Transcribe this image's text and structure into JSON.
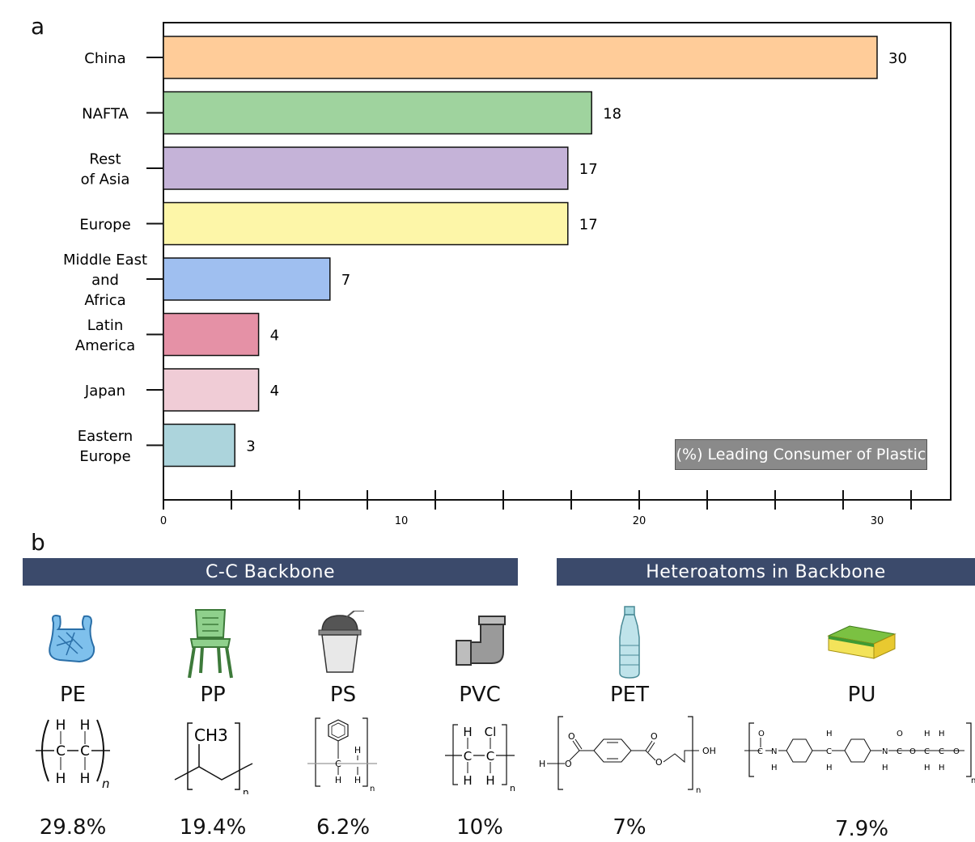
{
  "panel_a_label": "a",
  "panel_b_label": "b",
  "chart_data": {
    "type": "bar",
    "orientation": "horizontal",
    "categories": [
      "China",
      "NAFTA",
      "Rest of Asia",
      "Europe",
      "Middle East and Africa",
      "Latin America",
      "Japan",
      "Eastern Europe"
    ],
    "category_lines": [
      [
        "China"
      ],
      [
        "NAFTA"
      ],
      [
        "Rest",
        "of Asia"
      ],
      [
        "Europe"
      ],
      [
        "Middle East",
        "and",
        "Africa"
      ],
      [
        "Latin",
        "America"
      ],
      [
        "Japan"
      ],
      [
        "Eastern",
        "Europe"
      ]
    ],
    "values": [
      30,
      18,
      17,
      17,
      7,
      4,
      4,
      3
    ],
    "colors": [
      "#ffcc99",
      "#9fd39e",
      "#c5b3d8",
      "#fdf6a8",
      "#9fbff0",
      "#e591a6",
      "#f0ccd6",
      "#acd4dc"
    ],
    "xlim": [
      0,
      33
    ],
    "xticks": [
      0,
      10,
      20,
      30
    ],
    "xlabel": "",
    "ylabel": "",
    "legend_text": "(%) Leading Consumer of Plastic",
    "legend_position": "bottom-right",
    "grid": false
  },
  "banners": {
    "cc": "C-C Backbone",
    "hetero": "Heteroatoms in Backbone"
  },
  "polymers": [
    {
      "name": "PE",
      "percent": "29.8%",
      "icon": "plastic-bag-icon"
    },
    {
      "name": "PP",
      "percent": "19.4%",
      "icon": "plastic-chair-icon"
    },
    {
      "name": "PS",
      "percent": "6.2%",
      "icon": "drink-cup-icon"
    },
    {
      "name": "PVC",
      "percent": "10%",
      "icon": "pipe-elbow-icon"
    },
    {
      "name": "PET",
      "percent": "7%",
      "icon": "plastic-bottle-icon"
    },
    {
      "name": "PU",
      "percent": "7.9%",
      "icon": "sponge-icon"
    }
  ],
  "structures": {
    "pe": {
      "atoms": [
        "H",
        "H",
        "C",
        "C",
        "H",
        "H"
      ],
      "subscript": "n"
    },
    "pp": {
      "group": "CH3",
      "subscript": "n"
    },
    "ps": {
      "atoms": [
        "H",
        "C",
        "H",
        "H"
      ],
      "subscript": "n"
    },
    "pvc": {
      "atoms": [
        "H",
        "Cl",
        "C",
        "C",
        "H",
        "H"
      ],
      "subscript": "n"
    },
    "pet": {
      "atoms": [
        "H",
        "O",
        "O",
        "O",
        "O",
        "OH"
      ],
      "subscript": "n"
    },
    "pu": {
      "atoms": [
        "O",
        "C",
        "N",
        "H",
        "H",
        "C",
        "H",
        "N",
        "C",
        "O",
        "O",
        "H",
        "H",
        "C",
        "C",
        "O",
        "H",
        "H",
        "H"
      ],
      "subscript": "n"
    }
  }
}
